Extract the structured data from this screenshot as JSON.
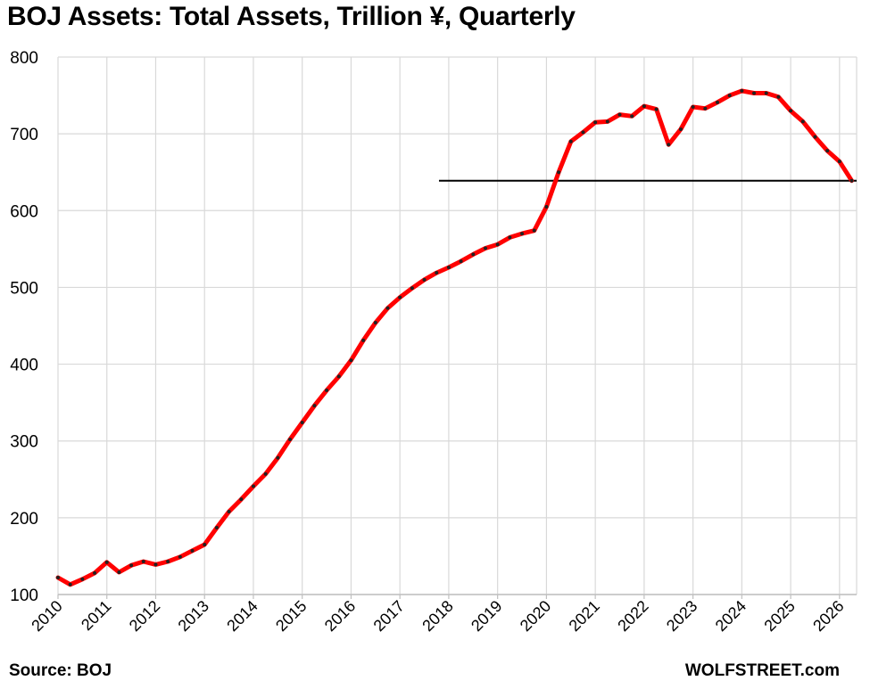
{
  "header": {
    "title": "BOJ Assets: Total Assets, Trillion ¥, Quarterly"
  },
  "footer": {
    "source": "Source: BOJ",
    "brand": "WOLFSTREET.com"
  },
  "chart_data": {
    "type": "line",
    "title": "BOJ Assets: Total Assets, Trillion ¥, Quarterly",
    "xlabel": "",
    "ylabel": "",
    "xlim": [
      2010,
      2026.35
    ],
    "ylim": [
      100,
      800
    ],
    "y_ticks": [
      100,
      200,
      300,
      400,
      500,
      600,
      700,
      800
    ],
    "x_ticks": [
      2010,
      2011,
      2012,
      2013,
      2014,
      2015,
      2016,
      2017,
      2018,
      2019,
      2020,
      2021,
      2022,
      2023,
      2024,
      2025,
      2026
    ],
    "grid": true,
    "legend": "none",
    "series_color": "#ff0000",
    "marker_color": "#222222",
    "reference_line": {
      "y": 639,
      "x_start": 2017.8,
      "x_end": 2026.35,
      "color": "#000000"
    },
    "x": [
      2010.0,
      2010.25,
      2010.5,
      2010.75,
      2011.0,
      2011.25,
      2011.5,
      2011.75,
      2012.0,
      2012.25,
      2012.5,
      2012.75,
      2013.0,
      2013.25,
      2013.5,
      2013.75,
      2014.0,
      2014.25,
      2014.5,
      2014.75,
      2015.0,
      2015.25,
      2015.5,
      2015.75,
      2016.0,
      2016.25,
      2016.5,
      2016.75,
      2017.0,
      2017.25,
      2017.5,
      2017.75,
      2018.0,
      2018.25,
      2018.5,
      2018.75,
      2019.0,
      2019.25,
      2019.5,
      2019.75,
      2020.0,
      2020.25,
      2020.5,
      2020.75,
      2021.0,
      2021.25,
      2021.5,
      2021.75,
      2022.0,
      2022.25,
      2022.5,
      2022.75,
      2023.0,
      2023.25,
      2023.5,
      2023.75,
      2024.0,
      2024.25,
      2024.5,
      2024.75,
      2025.0,
      2025.25,
      2025.5,
      2025.75,
      2026.0,
      2026.25
    ],
    "values": [
      122,
      113,
      120,
      128,
      142,
      129,
      138,
      143,
      139,
      143,
      149,
      157,
      165,
      187,
      208,
      224,
      241,
      257,
      278,
      302,
      324,
      346,
      366,
      384,
      405,
      431,
      454,
      473,
      487,
      499,
      510,
      519,
      526,
      534,
      543,
      551,
      556,
      565,
      570,
      574,
      605,
      650,
      690,
      702,
      715,
      716,
      725,
      723,
      736,
      732,
      686,
      706,
      735,
      733,
      741,
      750,
      756,
      753,
      753,
      748,
      730,
      716,
      696,
      678,
      664,
      639
    ]
  }
}
